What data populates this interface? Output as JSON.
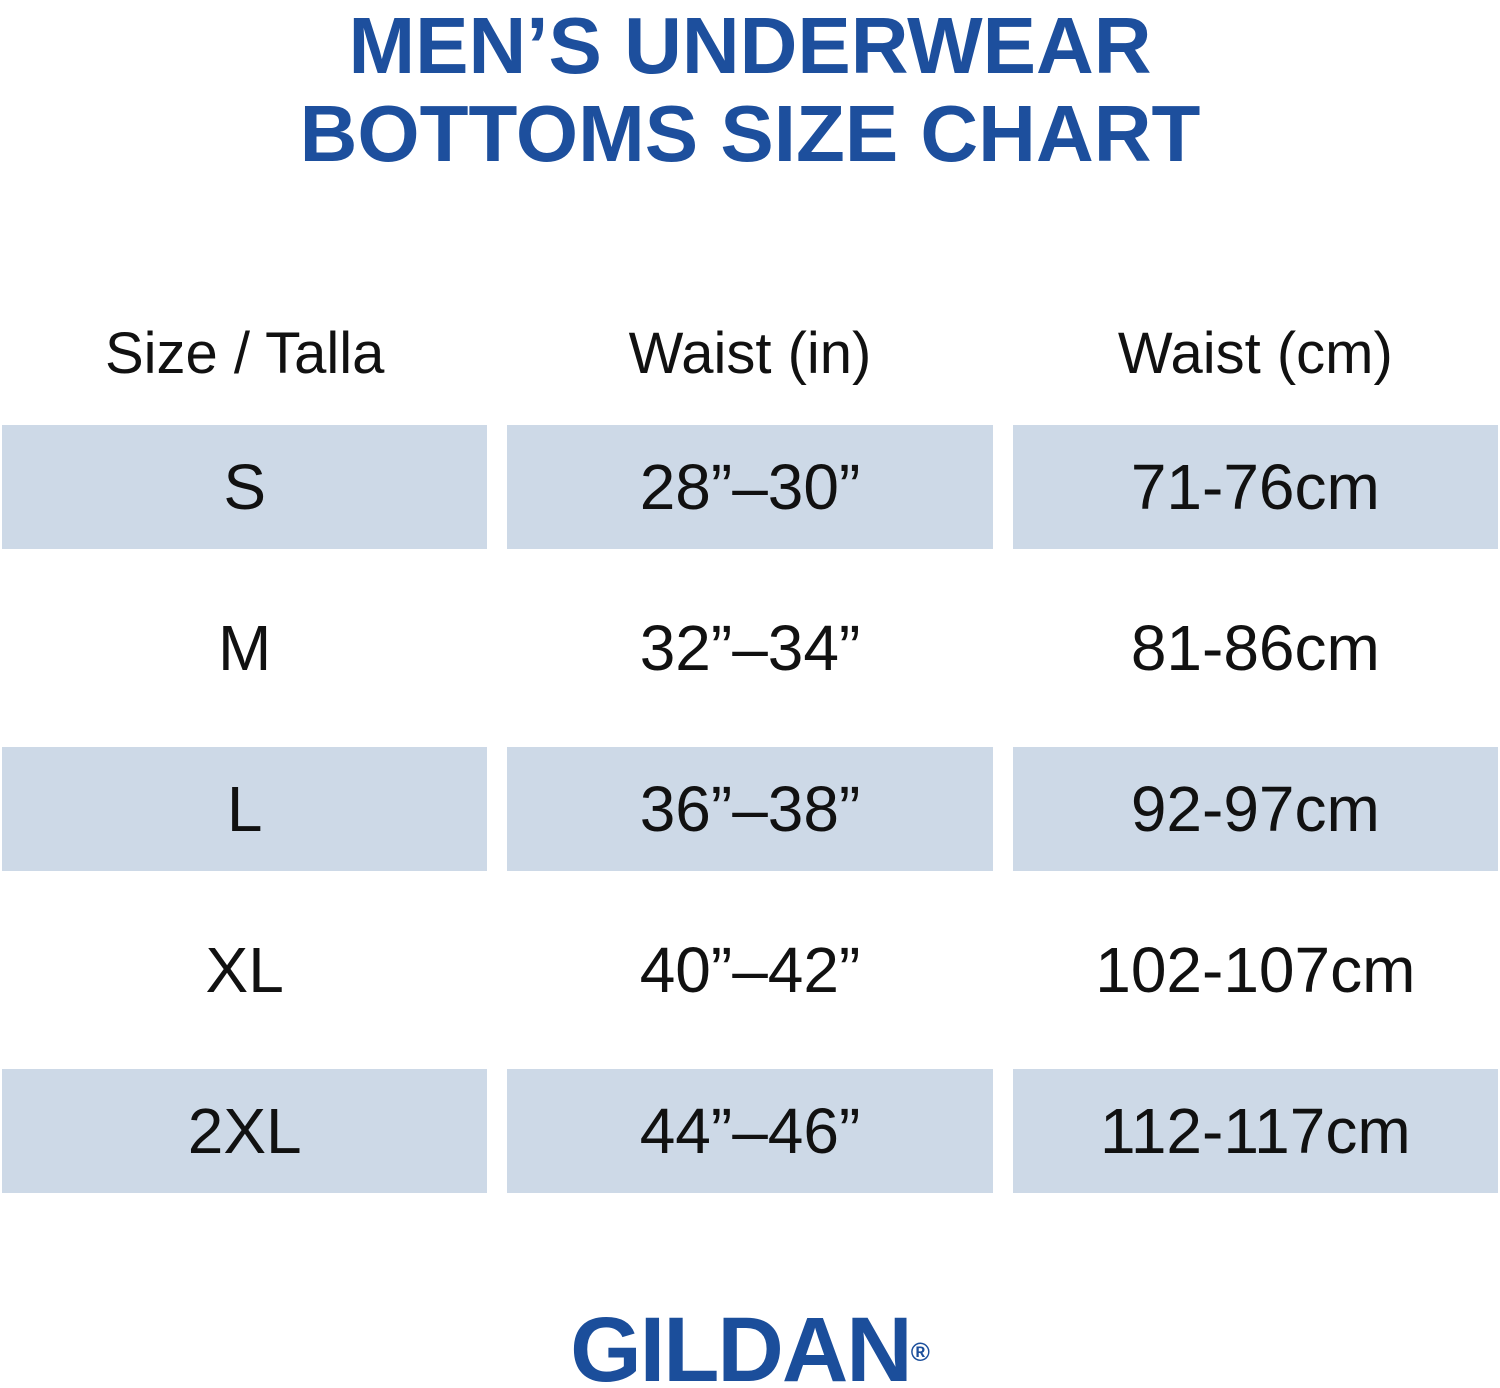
{
  "title": {
    "line1": "MEN’S UNDERWEAR",
    "line2": "BOTTOMS SIZE CHART"
  },
  "table": {
    "headers": [
      "Size / Talla",
      "Waist (in)",
      "Waist (cm)"
    ],
    "rows": [
      {
        "size": "S",
        "waist_in": "28”–30”",
        "waist_cm": "71-76cm",
        "shaded": true
      },
      {
        "size": "M",
        "waist_in": "32”–34”",
        "waist_cm": "81-86cm",
        "shaded": false
      },
      {
        "size": "L",
        "waist_in": "36”–38”",
        "waist_cm": "92-97cm",
        "shaded": true
      },
      {
        "size": "XL",
        "waist_in": "40”–42”",
        "waist_cm": "102-107cm",
        "shaded": false
      },
      {
        "size": "2XL",
        "waist_in": "44”–46”",
        "waist_cm": "112-117cm",
        "shaded": true
      }
    ]
  },
  "brand": {
    "name": "GILDAN",
    "registered_mark": "®"
  },
  "colors": {
    "title_blue": "#1d4f9d",
    "brand_blue": "#1b4e9b",
    "row_shade": "#cdd9e7",
    "text": "#111111"
  },
  "chart_data": {
    "type": "table",
    "title": "MEN’S UNDERWEAR BOTTOMS SIZE CHART",
    "columns": [
      "Size / Talla",
      "Waist (in)",
      "Waist (cm)"
    ],
    "rows": [
      [
        "S",
        "28”–30”",
        "71-76cm"
      ],
      [
        "M",
        "32”–34”",
        "81-86cm"
      ],
      [
        "L",
        "36”–38”",
        "92-97cm"
      ],
      [
        "XL",
        "40”–42”",
        "102-107cm"
      ],
      [
        "2XL",
        "44”–46”",
        "112-117cm"
      ]
    ],
    "layout": {
      "shaded_rows": [
        "S",
        "L",
        "2XL"
      ],
      "header_background": "none",
      "gridlines": false
    }
  }
}
